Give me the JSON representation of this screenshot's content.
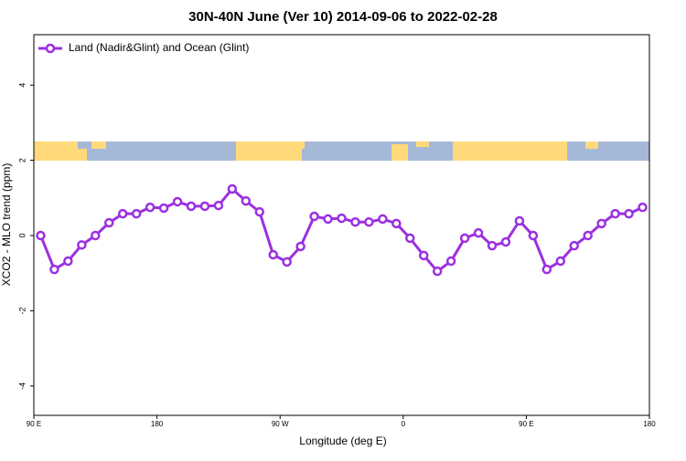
{
  "chart_data": {
    "type": "line",
    "title": "30N-40N June (Ver 10)   2014-09-06 to 2022-02-28",
    "x_label": "Longitude (deg E)",
    "y_label": "XCO2 - MLO trend (ppm)",
    "x": [
      95,
      105,
      115,
      125,
      135,
      145,
      155,
      165,
      175,
      185,
      195,
      205,
      215,
      225,
      235,
      245,
      255,
      265,
      275,
      285,
      295,
      305,
      315,
      325,
      335,
      345,
      355,
      365,
      375,
      385,
      395,
      405,
      415,
      425,
      435,
      445,
      455,
      465,
      475,
      485,
      495,
      505,
      515,
      525,
      535
    ],
    "series": [
      {
        "name": "Land (Nadir&Glint) and Ocean (Glint)",
        "color": "#9b30e0",
        "values": [
          0.0,
          -0.9,
          -0.68,
          -0.25,
          0.0,
          0.34,
          0.58,
          0.58,
          0.75,
          0.73,
          0.9,
          0.78,
          0.78,
          0.8,
          1.24,
          0.92,
          0.63,
          -0.51,
          -0.7,
          -0.29,
          0.51,
          0.44,
          0.46,
          0.36,
          0.36,
          0.44,
          0.32,
          -0.07,
          -0.53,
          -0.95,
          -0.68,
          -0.07,
          0.07,
          -0.27,
          -0.17,
          0.39,
          0.0,
          -0.9,
          -0.68,
          -0.27,
          0.0,
          0.32,
          0.58,
          0.58,
          0.75
        ]
      }
    ],
    "xlim": [
      90,
      540
    ],
    "xticks": [
      {
        "value": 90,
        "label": "90 E"
      },
      180,
      {
        "value": 270,
        "label": "90 W"
      },
      {
        "value": 360,
        "label": "0"
      },
      {
        "value": 450,
        "label": "90 E"
      },
      {
        "value": 540,
        "label": "180"
      }
    ],
    "ylim": [
      -4.78,
      5.34
    ],
    "yticks": [
      -4,
      -2,
      0,
      2,
      4
    ],
    "legend": "top-left"
  }
}
